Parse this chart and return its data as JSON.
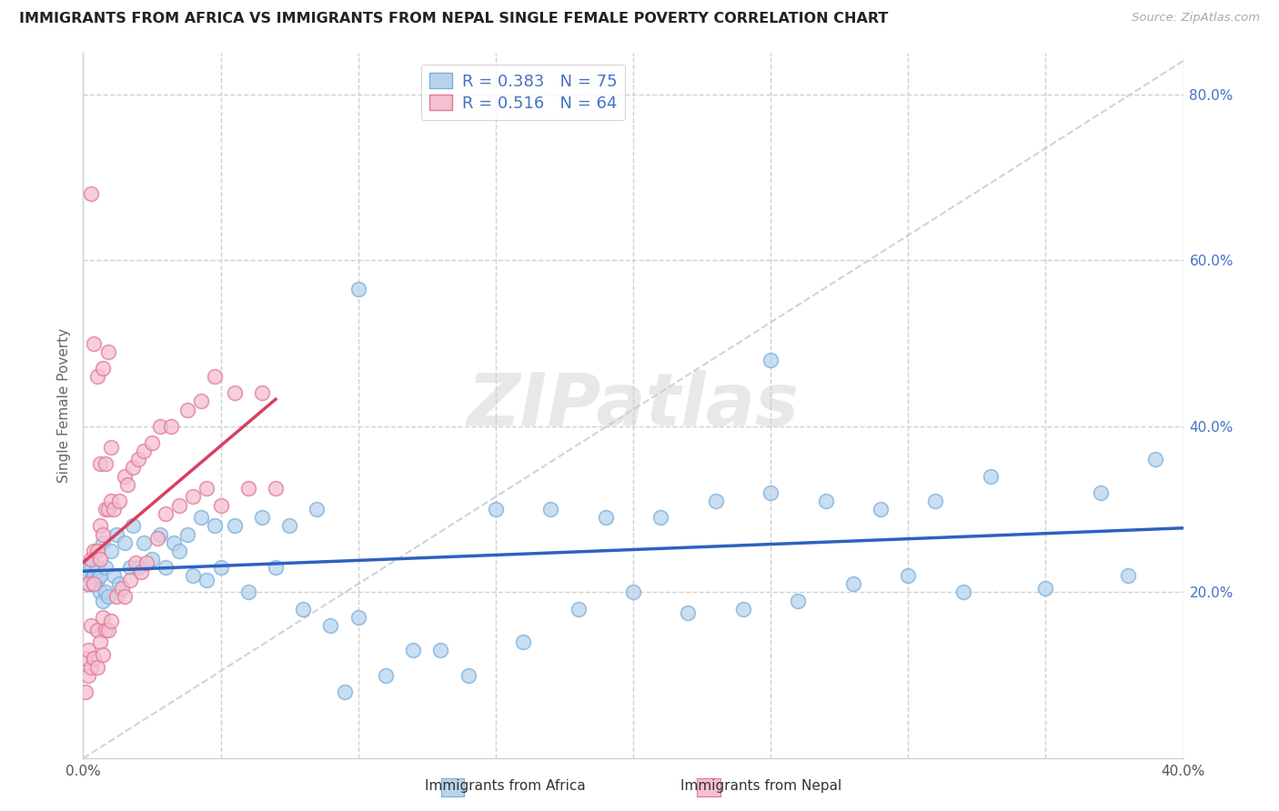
{
  "title": "IMMIGRANTS FROM AFRICA VS IMMIGRANTS FROM NEPAL SINGLE FEMALE POVERTY CORRELATION CHART",
  "source": "Source: ZipAtlas.com",
  "ylabel": "Single Female Poverty",
  "xlim": [
    0.0,
    0.4
  ],
  "ylim": [
    0.0,
    0.85
  ],
  "xtick_positions": [
    0.0,
    0.05,
    0.1,
    0.15,
    0.2,
    0.25,
    0.3,
    0.35,
    0.4
  ],
  "xtick_labels": [
    "0.0%",
    "",
    "",
    "",
    "",
    "",
    "",
    "",
    "40.0%"
  ],
  "ytick_positions": [
    0.2,
    0.4,
    0.6,
    0.8
  ],
  "ytick_labels": [
    "20.0%",
    "40.0%",
    "60.0%",
    "80.0%"
  ],
  "africa_fill": "#b8d4ed",
  "africa_edge": "#7aafdb",
  "nepal_fill": "#f5c0d0",
  "nepal_edge": "#e07898",
  "line_africa": "#3060c0",
  "line_nepal": "#d84060",
  "diag_color": "#c8c8c8",
  "R_africa": 0.383,
  "N_africa": 75,
  "R_nepal": 0.516,
  "N_nepal": 64,
  "watermark": "ZIPatlas",
  "legend_label_africa": "Immigrants from Africa",
  "legend_label_nepal": "Immigrants from Nepal",
  "title_color": "#222222",
  "source_color": "#aaaaaa",
  "ylabel_color": "#666666",
  "tick_color": "#4472c4",
  "grid_color": "#d0d0d0",
  "legend_text_color": "#4472c4",
  "africa_x": [
    0.001,
    0.002,
    0.002,
    0.003,
    0.003,
    0.004,
    0.004,
    0.005,
    0.005,
    0.006,
    0.006,
    0.007,
    0.007,
    0.008,
    0.008,
    0.009,
    0.01,
    0.011,
    0.012,
    0.013,
    0.015,
    0.017,
    0.018,
    0.02,
    0.022,
    0.025,
    0.028,
    0.03,
    0.033,
    0.035,
    0.038,
    0.04,
    0.043,
    0.045,
    0.048,
    0.05,
    0.055,
    0.06,
    0.065,
    0.07,
    0.075,
    0.08,
    0.085,
    0.09,
    0.095,
    0.1,
    0.11,
    0.12,
    0.13,
    0.14,
    0.15,
    0.16,
    0.17,
    0.18,
    0.19,
    0.2,
    0.21,
    0.22,
    0.23,
    0.24,
    0.25,
    0.26,
    0.27,
    0.28,
    0.29,
    0.3,
    0.31,
    0.32,
    0.33,
    0.35,
    0.37,
    0.38,
    0.39,
    0.1,
    0.25
  ],
  "africa_y": [
    0.23,
    0.24,
    0.22,
    0.25,
    0.23,
    0.24,
    0.22,
    0.26,
    0.23,
    0.25,
    0.22,
    0.24,
    0.26,
    0.25,
    0.23,
    0.24,
    0.25,
    0.26,
    0.27,
    0.25,
    0.26,
    0.27,
    0.28,
    0.27,
    0.26,
    0.28,
    0.27,
    0.28,
    0.26,
    0.3,
    0.27,
    0.28,
    0.29,
    0.27,
    0.28,
    0.29,
    0.28,
    0.27,
    0.29,
    0.3,
    0.28,
    0.29,
    0.3,
    0.29,
    0.28,
    0.3,
    0.29,
    0.3,
    0.29,
    0.28,
    0.3,
    0.29,
    0.3,
    0.31,
    0.29,
    0.31,
    0.29,
    0.3,
    0.31,
    0.3,
    0.32,
    0.31,
    0.31,
    0.32,
    0.3,
    0.33,
    0.31,
    0.32,
    0.34,
    0.33,
    0.32,
    0.35,
    0.36,
    0.56,
    0.48
  ],
  "africa_y_low": [
    0.2,
    0.21,
    0.195,
    0.215,
    0.2,
    0.21,
    0.195,
    0.215,
    0.195,
    0.2,
    0.185,
    0.19,
    0.215,
    0.2,
    0.185,
    0.195,
    0.21,
    0.22,
    0.23,
    0.21,
    0.215,
    0.23,
    0.24,
    0.23,
    0.22,
    0.24,
    0.225,
    0.23,
    0.21,
    0.25,
    0.215,
    0.22,
    0.23,
    0.215,
    0.22,
    0.23,
    0.22,
    0.2,
    0.22,
    0.23,
    0.16,
    0.18,
    0.14,
    0.16,
    0.15,
    0.17,
    0.13,
    0.14,
    0.14,
    0.12,
    0.16,
    0.14,
    0.15,
    0.18,
    0.13,
    0.2,
    0.16,
    0.175,
    0.19,
    0.18,
    0.21,
    0.19,
    0.2,
    0.21,
    0.175,
    0.22,
    0.185,
    0.2,
    0.22,
    0.205,
    0.19,
    0.22,
    0.23,
    0.35,
    0.38
  ],
  "nepal_x": [
    0.001,
    0.001,
    0.002,
    0.002,
    0.002,
    0.003,
    0.003,
    0.003,
    0.004,
    0.004,
    0.004,
    0.005,
    0.005,
    0.005,
    0.006,
    0.006,
    0.006,
    0.007,
    0.007,
    0.007,
    0.008,
    0.008,
    0.009,
    0.009,
    0.01,
    0.01,
    0.011,
    0.012,
    0.013,
    0.014,
    0.015,
    0.015,
    0.016,
    0.017,
    0.018,
    0.019,
    0.02,
    0.021,
    0.022,
    0.023,
    0.025,
    0.027,
    0.028,
    0.03,
    0.032,
    0.035,
    0.038,
    0.04,
    0.043,
    0.045,
    0.048,
    0.05,
    0.055,
    0.06,
    0.065,
    0.07,
    0.003,
    0.004,
    0.005,
    0.006,
    0.007,
    0.008,
    0.009,
    0.01
  ],
  "nepal_y": [
    0.24,
    0.22,
    0.25,
    0.23,
    0.21,
    0.26,
    0.24,
    0.22,
    0.25,
    0.23,
    0.21,
    0.27,
    0.25,
    0.23,
    0.28,
    0.26,
    0.24,
    0.29,
    0.27,
    0.25,
    0.3,
    0.28,
    0.3,
    0.28,
    0.31,
    0.29,
    0.3,
    0.32,
    0.31,
    0.33,
    0.34,
    0.32,
    0.33,
    0.34,
    0.35,
    0.36,
    0.36,
    0.35,
    0.37,
    0.36,
    0.38,
    0.39,
    0.4,
    0.42,
    0.4,
    0.43,
    0.42,
    0.44,
    0.43,
    0.45,
    0.46,
    0.43,
    0.44,
    0.45,
    0.44,
    0.45,
    0.46,
    0.46,
    0.47,
    0.48,
    0.47,
    0.48,
    0.49,
    0.5
  ],
  "nepal_y_low": [
    0.16,
    0.13,
    0.15,
    0.12,
    0.1,
    0.16,
    0.14,
    0.11,
    0.145,
    0.12,
    0.1,
    0.155,
    0.13,
    0.11,
    0.16,
    0.14,
    0.115,
    0.17,
    0.15,
    0.125,
    0.175,
    0.155,
    0.175,
    0.155,
    0.185,
    0.165,
    0.175,
    0.195,
    0.185,
    0.205,
    0.215,
    0.195,
    0.205,
    0.215,
    0.225,
    0.235,
    0.235,
    0.225,
    0.245,
    0.235,
    0.255,
    0.265,
    0.275,
    0.295,
    0.275,
    0.305,
    0.295,
    0.315,
    0.305,
    0.325,
    0.335,
    0.305,
    0.315,
    0.325,
    0.315,
    0.325,
    0.335,
    0.335,
    0.345,
    0.355,
    0.345,
    0.355,
    0.365,
    0.375
  ]
}
